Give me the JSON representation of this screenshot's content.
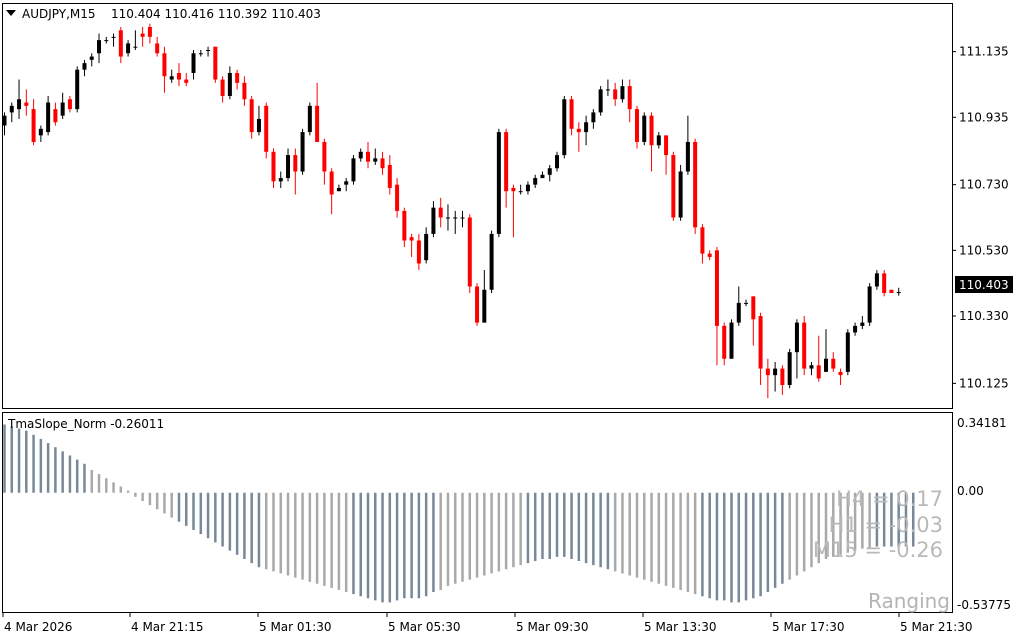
{
  "header": {
    "symbol": "AUDJPY,M15",
    "ohlc": "110.404 110.416 110.392 110.403"
  },
  "indicator": {
    "title": "TmaSlope_Norm -0.26011",
    "levels": [
      "0.34181",
      "0.00",
      "-0.53775"
    ],
    "slopes": [
      {
        "label": "H4 = 0.17"
      },
      {
        "label": "H1 = -0.03"
      },
      {
        "label": "M15 = -0.26"
      }
    ],
    "state": "Ranging"
  },
  "colors": {
    "bull": "#000000",
    "bear": "#ff0000",
    "neutral": "#00c000",
    "hist_dark": "#778899",
    "hist_light": "#a9a9a9",
    "price_box_bg": "#000000",
    "price_box_fg": "#ffffff"
  },
  "chart_data": [
    {
      "type": "candlestick",
      "symbol": "AUDJPY",
      "timeframe": "M15",
      "ylim": [
        110.05,
        111.28
      ],
      "y_ticks": [
        "111.135",
        "110.935",
        "110.730",
        "110.530",
        "110.330",
        "110.125"
      ],
      "x_ticks": [
        "4 Mar 2026",
        "4 Mar 21:15",
        "5 Mar 01:30",
        "5 Mar 05:30",
        "5 Mar 09:30",
        "5 Mar 13:30",
        "5 Mar 17:30",
        "5 Mar 21:30"
      ],
      "last_price": "110.403",
      "candles": [
        [
          110.91,
          110.94,
          110.88,
          110.95
        ],
        [
          110.95,
          110.97,
          110.92,
          110.98
        ],
        [
          110.96,
          110.99,
          110.93,
          111.05
        ],
        [
          110.98,
          110.97,
          110.94,
          111.02
        ],
        [
          110.96,
          110.86,
          110.85,
          110.99
        ],
        [
          110.88,
          110.9,
          110.86,
          110.91
        ],
        [
          110.89,
          110.98,
          110.88,
          111.0
        ],
        [
          110.96,
          110.92,
          110.91,
          110.98
        ],
        [
          110.94,
          110.98,
          110.93,
          111.01
        ],
        [
          110.99,
          110.96,
          110.95,
          111.0
        ],
        [
          110.96,
          111.08,
          110.95,
          111.09
        ],
        [
          111.08,
          111.1,
          111.06,
          111.11
        ],
        [
          111.11,
          111.12,
          111.09,
          111.13
        ],
        [
          111.13,
          111.17,
          111.1,
          111.19
        ],
        [
          111.17,
          111.17,
          111.16,
          111.18
        ],
        [
          111.18,
          111.18,
          111.15,
          111.19
        ],
        [
          111.2,
          111.12,
          111.1,
          111.21
        ],
        [
          111.13,
          111.16,
          111.12,
          111.17
        ],
        [
          111.15,
          111.15,
          111.14,
          111.2
        ],
        [
          111.19,
          111.18,
          111.15,
          111.21
        ],
        [
          111.21,
          111.18,
          111.16,
          111.22
        ],
        [
          111.16,
          111.13,
          111.12,
          111.18
        ],
        [
          111.13,
          111.06,
          111.01,
          111.15
        ],
        [
          111.05,
          111.06,
          111.04,
          111.08
        ],
        [
          111.07,
          111.05,
          111.03,
          111.1
        ],
        [
          111.05,
          111.04,
          111.03,
          111.07
        ],
        [
          111.07,
          111.13,
          111.05,
          111.14
        ],
        [
          111.13,
          111.13,
          111.12,
          111.14
        ],
        [
          111.14,
          111.14,
          111.12,
          111.15
        ],
        [
          111.15,
          111.05,
          111.04,
          111.15
        ],
        [
          111.05,
          111.0,
          110.98,
          111.06
        ],
        [
          111.0,
          111.07,
          110.99,
          111.09
        ],
        [
          111.07,
          111.04,
          111.02,
          111.08
        ],
        [
          111.04,
          110.99,
          110.97,
          111.06
        ],
        [
          110.99,
          110.89,
          110.87,
          111.0
        ],
        [
          110.89,
          110.93,
          110.88,
          110.97
        ],
        [
          110.97,
          110.83,
          110.81,
          110.98
        ],
        [
          110.83,
          110.74,
          110.72,
          110.84
        ],
        [
          110.74,
          110.75,
          110.72,
          110.77
        ],
        [
          110.75,
          110.82,
          110.74,
          110.84
        ],
        [
          110.82,
          110.77,
          110.7,
          110.84
        ],
        [
          110.77,
          110.89,
          110.76,
          110.9
        ],
        [
          110.89,
          110.97,
          110.88,
          110.98
        ],
        [
          110.97,
          110.86,
          110.86,
          111.04
        ],
        [
          110.86,
          110.77,
          110.73,
          110.87
        ],
        [
          110.77,
          110.7,
          110.64,
          110.78
        ],
        [
          110.71,
          110.72,
          110.71,
          110.73
        ],
        [
          110.73,
          110.74,
          110.71,
          110.75
        ],
        [
          110.74,
          110.81,
          110.73,
          110.82
        ],
        [
          110.81,
          110.83,
          110.8,
          110.84
        ],
        [
          110.83,
          110.8,
          110.78,
          110.86
        ],
        [
          110.8,
          110.81,
          110.79,
          110.84
        ],
        [
          110.81,
          110.78,
          110.76,
          110.83
        ],
        [
          110.79,
          110.72,
          110.7,
          110.82
        ],
        [
          110.73,
          110.65,
          110.63,
          110.75
        ],
        [
          110.65,
          110.56,
          110.54,
          110.66
        ],
        [
          110.57,
          110.56,
          110.51,
          110.58
        ],
        [
          110.56,
          110.49,
          110.47,
          110.58
        ],
        [
          110.5,
          110.58,
          110.49,
          110.6
        ],
        [
          110.58,
          110.66,
          110.57,
          110.68
        ],
        [
          110.66,
          110.63,
          110.6,
          110.69
        ],
        [
          110.63,
          110.63,
          110.59,
          110.67
        ],
        [
          110.63,
          110.63,
          110.58,
          110.65
        ],
        [
          110.63,
          110.63,
          110.6,
          110.65
        ],
        [
          110.63,
          110.42,
          110.4,
          110.64
        ],
        [
          110.42,
          110.31,
          110.3,
          110.43
        ],
        [
          110.31,
          110.41,
          110.31,
          110.47
        ],
        [
          110.41,
          110.58,
          110.4,
          110.59
        ],
        [
          110.58,
          110.89,
          110.57,
          110.9
        ],
        [
          110.89,
          110.71,
          110.66,
          110.9
        ],
        [
          110.72,
          110.71,
          110.57,
          110.73
        ],
        [
          110.71,
          110.71,
          110.7,
          110.73
        ],
        [
          110.71,
          110.73,
          110.7,
          110.74
        ],
        [
          110.73,
          110.75,
          110.72,
          110.76
        ],
        [
          110.75,
          110.76,
          110.75,
          110.77
        ],
        [
          110.76,
          110.78,
          110.74,
          110.79
        ],
        [
          110.78,
          110.82,
          110.77,
          110.83
        ],
        [
          110.82,
          110.99,
          110.81,
          111.0
        ],
        [
          110.99,
          110.9,
          110.88,
          111.0
        ],
        [
          110.9,
          110.89,
          110.83,
          110.92
        ],
        [
          110.89,
          110.92,
          110.85,
          110.94
        ],
        [
          110.92,
          110.95,
          110.9,
          110.96
        ],
        [
          110.95,
          111.02,
          110.94,
          111.03
        ],
        [
          111.02,
          111.02,
          111.0,
          111.05
        ],
        [
          111.02,
          110.99,
          110.97,
          111.04
        ],
        [
          110.99,
          111.03,
          110.98,
          111.05
        ],
        [
          111.03,
          110.96,
          110.92,
          111.05
        ],
        [
          110.96,
          110.86,
          110.84,
          110.97
        ],
        [
          110.86,
          110.94,
          110.85,
          110.95
        ],
        [
          110.94,
          110.85,
          110.77,
          110.95
        ],
        [
          110.85,
          110.88,
          110.84,
          110.89
        ],
        [
          110.88,
          110.82,
          110.76,
          110.88
        ],
        [
          110.82,
          110.63,
          110.62,
          110.83
        ],
        [
          110.63,
          110.77,
          110.62,
          110.79
        ],
        [
          110.77,
          110.86,
          110.76,
          110.94
        ],
        [
          110.86,
          110.6,
          110.58,
          110.87
        ],
        [
          110.6,
          110.52,
          110.49,
          110.61
        ],
        [
          110.52,
          110.51,
          110.5,
          110.53
        ],
        [
          110.53,
          110.3,
          110.18,
          110.54
        ],
        [
          110.3,
          110.2,
          110.18,
          110.31
        ],
        [
          110.2,
          110.31,
          110.2,
          110.32
        ],
        [
          110.31,
          110.37,
          110.3,
          110.42
        ],
        [
          110.37,
          110.37,
          110.36,
          110.38
        ],
        [
          110.39,
          110.32,
          110.24,
          110.39
        ],
        [
          110.33,
          110.17,
          110.12,
          110.34
        ],
        [
          110.17,
          110.15,
          110.08,
          110.2
        ],
        [
          110.15,
          110.17,
          110.1,
          110.19
        ],
        [
          110.17,
          110.12,
          110.09,
          110.18
        ],
        [
          110.12,
          110.22,
          110.11,
          110.23
        ],
        [
          110.22,
          110.31,
          110.14,
          110.32
        ],
        [
          110.31,
          110.17,
          110.15,
          110.33
        ],
        [
          110.17,
          110.18,
          110.15,
          110.19
        ],
        [
          110.18,
          110.14,
          110.13,
          110.27
        ],
        [
          110.16,
          110.2,
          110.16,
          110.29
        ],
        [
          110.2,
          110.17,
          110.16,
          110.22
        ],
        [
          110.16,
          110.15,
          110.12,
          110.17
        ],
        [
          110.16,
          110.28,
          110.15,
          110.29
        ],
        [
          110.28,
          110.3,
          110.27,
          110.31
        ],
        [
          110.3,
          110.31,
          110.29,
          110.33
        ],
        [
          110.31,
          110.42,
          110.3,
          110.43
        ],
        [
          110.42,
          110.46,
          110.41,
          110.47
        ],
        [
          110.46,
          110.4,
          110.39,
          110.47
        ],
        [
          110.41,
          110.4,
          110.4,
          110.41
        ],
        [
          110.4,
          110.403,
          110.392,
          110.416
        ]
      ]
    },
    {
      "type": "bar",
      "name": "TmaSlope_Norm",
      "ylim": [
        -0.53775,
        0.34181
      ],
      "values": [
        0.33,
        0.32,
        0.31,
        0.3,
        0.28,
        0.26,
        0.24,
        0.22,
        0.2,
        0.18,
        0.16,
        0.14,
        0.11,
        0.09,
        0.07,
        0.05,
        0.03,
        0.01,
        -0.02,
        -0.04,
        -0.06,
        -0.08,
        -0.1,
        -0.12,
        -0.14,
        -0.16,
        -0.18,
        -0.2,
        -0.22,
        -0.24,
        -0.26,
        -0.28,
        -0.3,
        -0.32,
        -0.34,
        -0.36,
        -0.37,
        -0.38,
        -0.39,
        -0.4,
        -0.41,
        -0.42,
        -0.43,
        -0.44,
        -0.45,
        -0.46,
        -0.47,
        -0.48,
        -0.49,
        -0.5,
        -0.51,
        -0.52,
        -0.53,
        -0.53,
        -0.52,
        -0.51,
        -0.51,
        -0.51,
        -0.5,
        -0.48,
        -0.47,
        -0.45,
        -0.44,
        -0.43,
        -0.42,
        -0.41,
        -0.4,
        -0.39,
        -0.38,
        -0.37,
        -0.36,
        -0.35,
        -0.34,
        -0.33,
        -0.32,
        -0.32,
        -0.31,
        -0.31,
        -0.32,
        -0.33,
        -0.34,
        -0.35,
        -0.36,
        -0.37,
        -0.38,
        -0.39,
        -0.4,
        -0.41,
        -0.42,
        -0.43,
        -0.44,
        -0.45,
        -0.46,
        -0.47,
        -0.48,
        -0.49,
        -0.5,
        -0.51,
        -0.52,
        -0.52,
        -0.53,
        -0.53,
        -0.52,
        -0.51,
        -0.5,
        -0.48,
        -0.46,
        -0.44,
        -0.42,
        -0.4,
        -0.38,
        -0.36,
        -0.34,
        -0.32,
        -0.31,
        -0.3,
        -0.29,
        -0.28,
        -0.27,
        -0.27,
        -0.26,
        -0.26,
        -0.26,
        -0.26,
        -0.26,
        -0.26
      ],
      "value_colors_note": ""
    }
  ]
}
